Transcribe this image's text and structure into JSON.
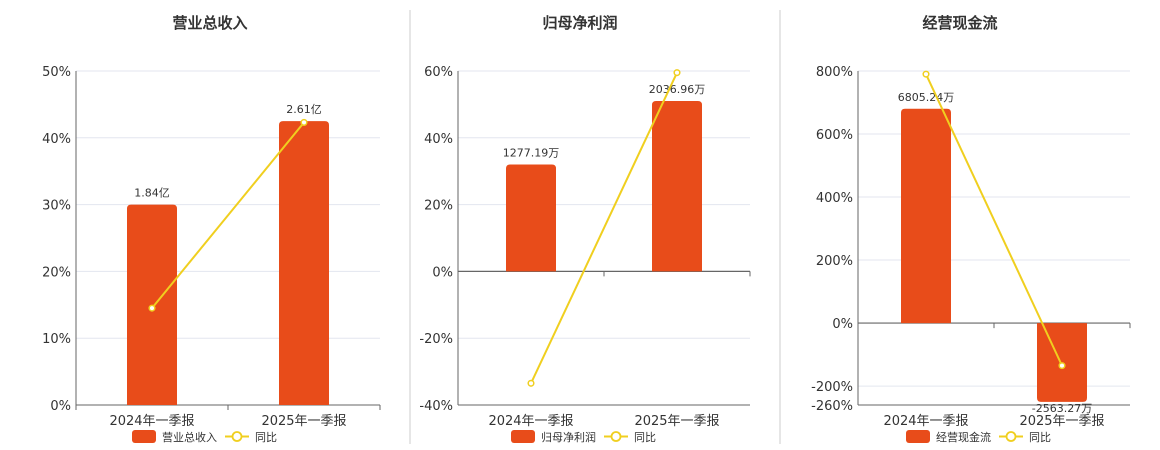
{
  "colors": {
    "bar": "#e84c1a",
    "line": "#f0cf1f",
    "grid": "#e3e6ef",
    "axis": "#666666",
    "divider": "#cccccc"
  },
  "chart_data": [
    {
      "type": "bar",
      "title": "营业总收入",
      "categories": [
        "2024年一季报",
        "2025年一季报"
      ],
      "series": [
        {
          "name": "营业总收入",
          "type": "bar",
          "values": [
            30,
            42.5
          ],
          "labels": [
            "1.84亿",
            "2.61亿"
          ]
        },
        {
          "name": "同比",
          "type": "line",
          "values": [
            14.5,
            42.3
          ]
        }
      ],
      "ylim": [
        0,
        50
      ],
      "yticks": [
        0,
        10,
        20,
        30,
        40,
        50
      ],
      "ytick_labels": [
        "0%",
        "10%",
        "20%",
        "30%",
        "40%",
        "50%"
      ],
      "legend": [
        "营业总收入",
        "同比"
      ],
      "legend_position": "bottom"
    },
    {
      "type": "bar",
      "title": "归母净利润",
      "categories": [
        "2024年一季报",
        "2025年一季报"
      ],
      "series": [
        {
          "name": "归母净利润",
          "type": "bar",
          "values": [
            32,
            51
          ],
          "labels": [
            "1277.19万",
            "2036.96万"
          ]
        },
        {
          "name": "同比",
          "type": "line",
          "values": [
            -33.5,
            59.5
          ]
        }
      ],
      "ylim": [
        -40,
        60
      ],
      "yticks": [
        -40,
        -20,
        0,
        20,
        40,
        60
      ],
      "ytick_labels": [
        "-40%",
        "-20%",
        "0%",
        "20%",
        "40%",
        "60%"
      ],
      "legend": [
        "归母净利润",
        "同比"
      ],
      "legend_position": "bottom"
    },
    {
      "type": "bar",
      "title": "经营现金流",
      "categories": [
        "2024年一季报",
        "2025年一季报"
      ],
      "series": [
        {
          "name": "经营现金流",
          "type": "bar",
          "values": [
            680,
            -250
          ],
          "labels": [
            "6805.24万",
            "-2563.27万"
          ]
        },
        {
          "name": "同比",
          "type": "line",
          "values": [
            790,
            -135
          ]
        }
      ],
      "ylim": [
        -260,
        800
      ],
      "yticks": [
        -260,
        -200,
        0,
        200,
        400,
        600,
        800
      ],
      "ytick_labels": [
        "-260%",
        "-200%",
        "0%",
        "200%",
        "400%",
        "600%",
        "800%"
      ],
      "legend": [
        "经营现金流",
        "同比"
      ],
      "legend_position": "bottom"
    }
  ]
}
